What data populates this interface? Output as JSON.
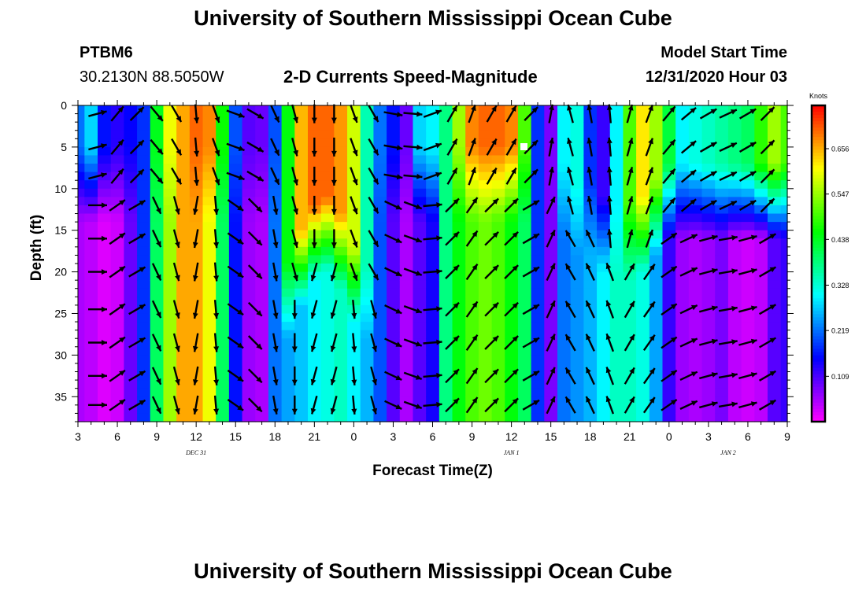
{
  "page": {
    "title_top": "University of Southern Mississippi Ocean Cube",
    "title_bottom": "University of Southern Mississippi Ocean Cube",
    "station_id": "PTBM6",
    "station_coords": "30.2130N 88.5050W",
    "subtitle": "2-D Currents Speed-Magnitude",
    "model_start_label": "Model Start Time",
    "model_start_value": "12/31/2020 Hour 03"
  },
  "chart_data": {
    "type": "heatmap",
    "title": "2-D Currents Speed-Magnitude",
    "xlabel": "Forecast Time(Z)",
    "ylabel": "Depth (ft)",
    "x_tick_labels": [
      "3",
      "6",
      "9",
      "12",
      "15",
      "18",
      "21",
      "0",
      "3",
      "6",
      "9",
      "12",
      "15",
      "18",
      "21",
      "0",
      "3",
      "6",
      "9"
    ],
    "x_range_hours": [
      0,
      54
    ],
    "date_labels": [
      {
        "text": "DEC 31",
        "hour": 9
      },
      {
        "text": "JAN 1",
        "hour": 33
      },
      {
        "text": "JAN 2",
        "hour": 49.5
      }
    ],
    "y_ticks": [
      0,
      5,
      10,
      15,
      20,
      25,
      30,
      35
    ],
    "y_range": [
      0,
      38
    ],
    "colorbar": {
      "title": "Knots",
      "levels": [
        "0.109",
        "0.219",
        "0.328",
        "0.438",
        "0.547",
        "0.656"
      ],
      "range": [
        0,
        0.76
      ]
    },
    "columns": [
      {
        "h": 0,
        "top": 0.22,
        "bottom": 0.05,
        "bend": 8,
        "dir": 90
      },
      {
        "h": 1,
        "top": 0.28,
        "bottom": 0.04,
        "bend": 8,
        "dir": 75
      },
      {
        "h": 2,
        "top": 0.16,
        "bottom": 0.02,
        "bend": 8,
        "dir": 45
      },
      {
        "h": 3,
        "top": 0.13,
        "bottom": 0.03,
        "bend": 8,
        "dir": 40
      },
      {
        "h": 4,
        "top": 0.15,
        "bottom": 0.09,
        "bend": 8,
        "dir": 45
      },
      {
        "h": 5,
        "top": 0.18,
        "bottom": 0.18,
        "bend": 8,
        "dir": 110
      },
      {
        "h": 6,
        "top": 0.44,
        "bottom": 0.4,
        "bend": 8,
        "dir": 140
      },
      {
        "h": 7,
        "top": 0.6,
        "bottom": 0.55,
        "bend": 8,
        "dir": 150
      },
      {
        "h": 8,
        "top": 0.66,
        "bottom": 0.66,
        "bend": 8,
        "dir": 175
      },
      {
        "h": 9,
        "top": 0.7,
        "bottom": 0.66,
        "bend": 8,
        "dir": 175
      },
      {
        "h": 10,
        "top": 0.68,
        "bottom": 0.6,
        "bend": 8,
        "dir": 160
      },
      {
        "h": 11,
        "top": 0.46,
        "bottom": 0.4,
        "bend": 8,
        "dir": 135
      },
      {
        "h": 12,
        "top": 0.2,
        "bottom": 0.16,
        "bend": 8,
        "dir": 110
      },
      {
        "h": 13,
        "top": 0.1,
        "bottom": 0.06,
        "bend": 8,
        "dir": 120
      },
      {
        "h": 14,
        "top": 0.09,
        "bottom": 0.05,
        "bend": 8,
        "dir": 140
      },
      {
        "h": 15,
        "top": 0.2,
        "bottom": 0.22,
        "bend": 8,
        "dir": 155
      },
      {
        "h": 16,
        "top": 0.45,
        "bottom": 0.25,
        "bend": 22,
        "dir": 165
      },
      {
        "h": 17,
        "top": 0.65,
        "bottom": 0.27,
        "bend": 18,
        "dir": 175
      },
      {
        "h": 18,
        "top": 0.7,
        "bottom": 0.3,
        "bend": 15,
        "dir": 180
      },
      {
        "h": 19,
        "top": 0.7,
        "bottom": 0.32,
        "bend": 14,
        "dir": 180
      },
      {
        "h": 20,
        "top": 0.67,
        "bottom": 0.34,
        "bend": 16,
        "dir": 175
      },
      {
        "h": 21,
        "top": 0.58,
        "bottom": 0.3,
        "bend": 20,
        "dir": 160
      },
      {
        "h": 22,
        "top": 0.35,
        "bottom": 0.26,
        "bend": 22,
        "dir": 150
      },
      {
        "h": 23,
        "top": 0.22,
        "bottom": 0.2,
        "bend": 8,
        "dir": 120
      },
      {
        "h": 24,
        "top": 0.16,
        "bottom": 0.1,
        "bend": 8,
        "dir": 100
      },
      {
        "h": 25,
        "top": 0.09,
        "bottom": 0.05,
        "bend": 8,
        "dir": 95
      },
      {
        "h": 26,
        "top": 0.28,
        "bottom": 0.1,
        "bend": 8,
        "dir": 80
      },
      {
        "h": 27,
        "top": 0.3,
        "bottom": 0.14,
        "bend": 8,
        "dir": 70
      },
      {
        "h": 28,
        "top": 0.38,
        "bottom": 0.38,
        "bend": 8,
        "dir": 30
      },
      {
        "h": 29,
        "top": 0.55,
        "bottom": 0.45,
        "bend": 8,
        "dir": 20
      },
      {
        "h": 30,
        "top": 0.68,
        "bottom": 0.5,
        "bend": 8,
        "dir": 20
      },
      {
        "h": 31,
        "top": 0.7,
        "bottom": 0.52,
        "bend": 8,
        "dir": 30
      },
      {
        "h": 32,
        "top": 0.7,
        "bottom": 0.5,
        "bend": 8,
        "dir": 25
      },
      {
        "h": 33,
        "top": 0.68,
        "bottom": 0.45,
        "bend": 8,
        "dir": 30
      },
      {
        "h": 34,
        "top": 0.5,
        "bottom": 0.4,
        "bend": 8,
        "dir": 45
      },
      {
        "h": 35,
        "top": 0.18,
        "bottom": 0.18,
        "bend": 8,
        "dir": 30
      },
      {
        "h": 36,
        "top": 0.08,
        "bottom": 0.08,
        "bend": 8,
        "dir": 10
      },
      {
        "h": 37,
        "top": 0.3,
        "bottom": 0.22,
        "bend": 10,
        "dir": 345
      },
      {
        "h": 38,
        "top": 0.32,
        "bottom": 0.24,
        "bend": 12,
        "dir": 340
      },
      {
        "h": 39,
        "top": 0.18,
        "bottom": 0.26,
        "bend": 12,
        "dir": 350
      },
      {
        "h": 40,
        "top": 0.12,
        "bottom": 0.3,
        "bend": 14,
        "dir": 355
      },
      {
        "h": 41,
        "top": 0.3,
        "bottom": 0.34,
        "bend": 15,
        "dir": 5
      },
      {
        "h": 42,
        "top": 0.5,
        "bottom": 0.34,
        "bend": 15,
        "dir": 15
      },
      {
        "h": 43,
        "top": 0.62,
        "bottom": 0.32,
        "bend": 14,
        "dir": 20
      },
      {
        "h": 44,
        "top": 0.55,
        "bottom": 0.25,
        "bend": 12,
        "dir": 25
      },
      {
        "h": 45,
        "top": 0.42,
        "bottom": 0.12,
        "bend": 10,
        "dir": 40
      },
      {
        "h": 46,
        "top": 0.3,
        "bottom": 0.06,
        "bend": 10,
        "dir": 50
      },
      {
        "h": 47,
        "top": 0.32,
        "bottom": 0.05,
        "bend": 10,
        "dir": 55
      },
      {
        "h": 48,
        "top": 0.34,
        "bottom": 0.06,
        "bend": 10,
        "dir": 60
      },
      {
        "h": 49,
        "top": 0.36,
        "bottom": 0.08,
        "bend": 10,
        "dir": 65
      },
      {
        "h": 50,
        "top": 0.38,
        "bottom": 0.04,
        "bend": 10,
        "dir": 65
      },
      {
        "h": 51,
        "top": 0.4,
        "bottom": 0.03,
        "bend": 10,
        "dir": 60
      },
      {
        "h": 52,
        "top": 0.48,
        "bottom": 0.04,
        "bend": 10,
        "dir": 45
      },
      {
        "h": 53,
        "top": 0.55,
        "bottom": 0.1,
        "bend": 10,
        "dir": 30
      },
      {
        "h": 54,
        "top": 0.5,
        "bottom": 0.12,
        "bend": 10,
        "dir": 25
      }
    ]
  }
}
